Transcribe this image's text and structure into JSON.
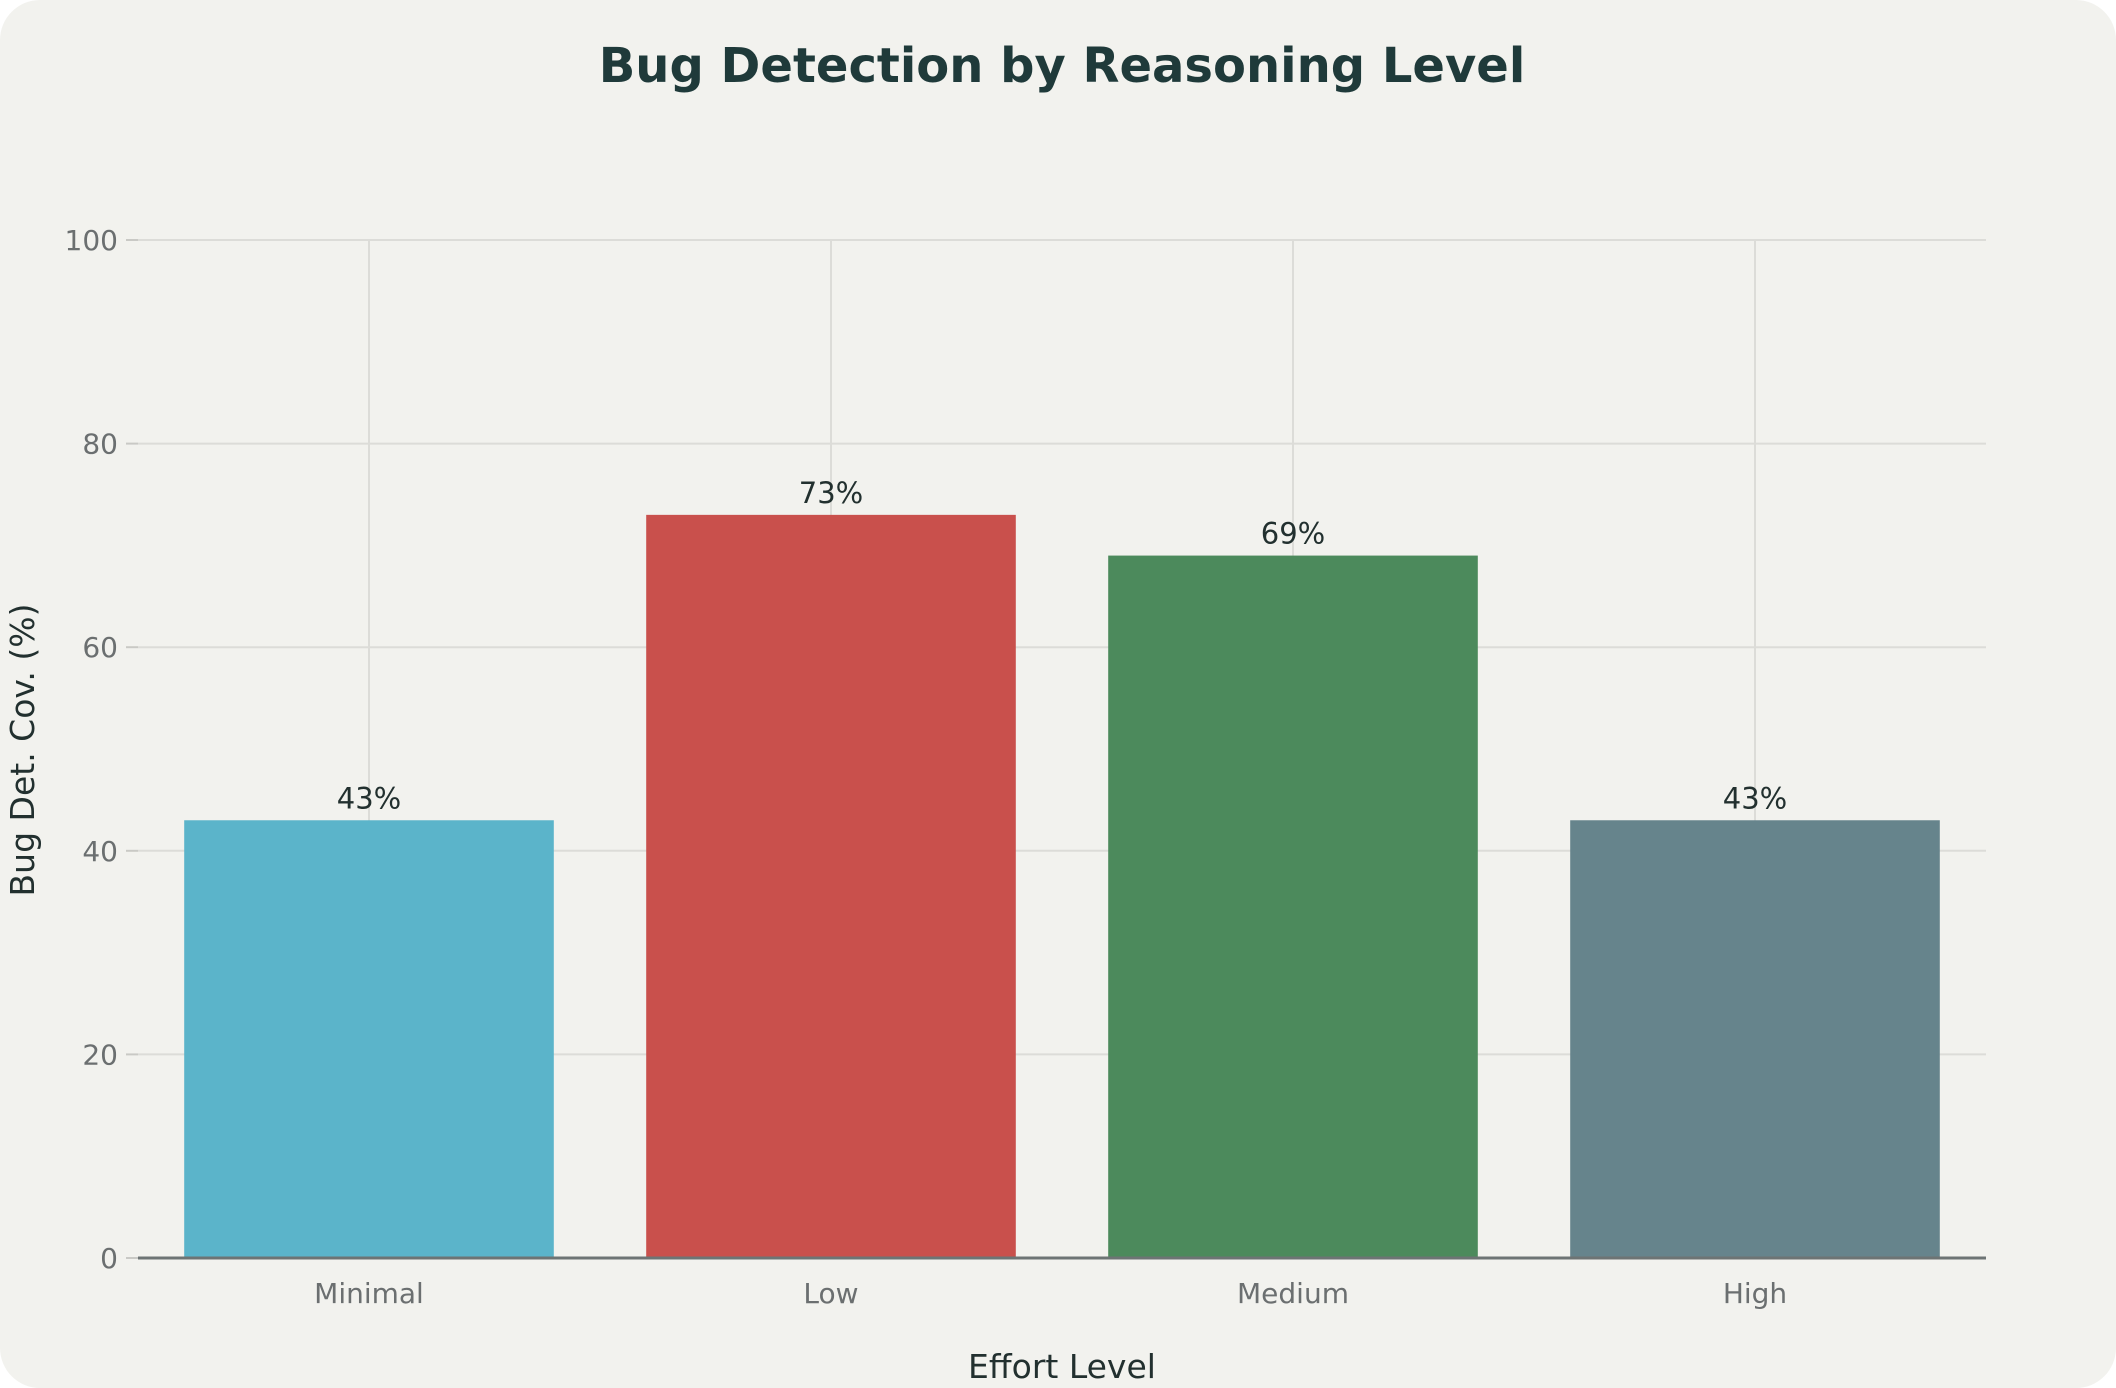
{
  "chart_data": {
    "type": "bar",
    "title": "Bug Detection by Reasoning Level",
    "xlabel": "Effort Level",
    "ylabel": "Bug Det. Cov. (%)",
    "ylim": [
      0,
      100
    ],
    "yticks": [
      0,
      20,
      40,
      60,
      80,
      100
    ],
    "categories": [
      "Minimal",
      "Low",
      "Medium",
      "High"
    ],
    "values": [
      43,
      73,
      69,
      43
    ],
    "data_labels": [
      "43%",
      "73%",
      "69%",
      "43%"
    ],
    "colors": [
      "#5bb4ca",
      "#c9504c",
      "#4c8a5c",
      "#66848c"
    ],
    "grid": true,
    "legend": "none"
  }
}
